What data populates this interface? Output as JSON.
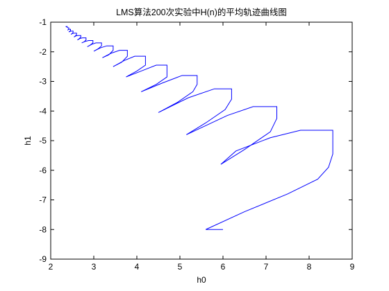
{
  "chart_data": {
    "type": "line",
    "title": "LMS算法200次实验中H(n)的平均轨迹曲线图",
    "xlabel": "h0",
    "ylabel": "h1",
    "xlim": [
      2,
      9
    ],
    "ylim": [
      -9,
      -1
    ],
    "xticks": [
      2,
      3,
      4,
      5,
      6,
      7,
      8,
      9
    ],
    "yticks": [
      -1,
      -2,
      -3,
      -4,
      -5,
      -6,
      -7,
      -8,
      -9
    ],
    "xtick_labels": [
      "2",
      "3",
      "4",
      "5",
      "6",
      "7",
      "8",
      "9"
    ],
    "ytick_labels": [
      "-1",
      "-2",
      "-3",
      "-4",
      "-5",
      "-6",
      "-7",
      "-8",
      "-9"
    ],
    "grid": false,
    "legend": "none",
    "series": [
      {
        "color": "#0000ff",
        "x": [
          6.0,
          5.6,
          6.5,
          7.5,
          8.2,
          8.45,
          8.55,
          8.55,
          7.8,
          7.1,
          6.3,
          5.95,
          6.5,
          7.1,
          7.25,
          7.25,
          6.7,
          6.1,
          5.15,
          5.6,
          6.05,
          6.2,
          6.2,
          5.8,
          5.2,
          4.5,
          4.95,
          5.3,
          5.4,
          5.4,
          5.05,
          4.6,
          4.1,
          4.45,
          4.7,
          4.7,
          4.45,
          4.1,
          3.75,
          4.0,
          4.2,
          4.2,
          3.95,
          3.7,
          3.45,
          3.65,
          3.78,
          3.78,
          3.6,
          3.4,
          3.2,
          3.35,
          3.45,
          3.45,
          3.3,
          3.15,
          3.0,
          3.1,
          3.18,
          3.18,
          3.05,
          2.95,
          2.85,
          2.92,
          2.98,
          2.98,
          2.88,
          2.8,
          2.72,
          2.78,
          2.82,
          2.82,
          2.74,
          2.68,
          2.62,
          2.66,
          2.7,
          2.7,
          2.64,
          2.59,
          2.54,
          2.57,
          2.6,
          2.6,
          2.55,
          2.51,
          2.47,
          2.5,
          2.52,
          2.52,
          2.48,
          2.45,
          2.42,
          2.44,
          2.46,
          2.46,
          2.43,
          2.41,
          2.39,
          2.41,
          2.42,
          2.42,
          2.4,
          2.38,
          2.36,
          2.38,
          2.37
        ],
        "y": [
          -8.0,
          -8.0,
          -7.4,
          -6.8,
          -6.3,
          -5.9,
          -5.45,
          -4.65,
          -4.65,
          -4.9,
          -5.35,
          -5.8,
          -5.3,
          -4.7,
          -4.25,
          -3.85,
          -3.85,
          -4.15,
          -4.8,
          -4.4,
          -3.95,
          -3.6,
          -3.25,
          -3.25,
          -3.55,
          -4.05,
          -3.7,
          -3.35,
          -3.1,
          -2.8,
          -2.8,
          -3.05,
          -3.35,
          -3.1,
          -2.85,
          -2.45,
          -2.45,
          -2.65,
          -2.85,
          -2.65,
          -2.45,
          -2.15,
          -2.15,
          -2.3,
          -2.5,
          -2.35,
          -2.15,
          -1.95,
          -1.95,
          -2.05,
          -2.2,
          -2.1,
          -1.95,
          -1.8,
          -1.8,
          -1.87,
          -1.98,
          -1.9,
          -1.8,
          -1.7,
          -1.7,
          -1.75,
          -1.83,
          -1.77,
          -1.7,
          -1.62,
          -1.62,
          -1.65,
          -1.7,
          -1.66,
          -1.6,
          -1.53,
          -1.53,
          -1.55,
          -1.6,
          -1.56,
          -1.5,
          -1.45,
          -1.45,
          -1.46,
          -1.5,
          -1.47,
          -1.42,
          -1.37,
          -1.37,
          -1.38,
          -1.41,
          -1.38,
          -1.34,
          -1.3,
          -1.3,
          -1.31,
          -1.33,
          -1.31,
          -1.28,
          -1.24,
          -1.24,
          -1.25,
          -1.27,
          -1.25,
          -1.22,
          -1.19,
          -1.19,
          -1.17,
          -1.15,
          -1.15,
          -1.13
        ]
      }
    ]
  }
}
